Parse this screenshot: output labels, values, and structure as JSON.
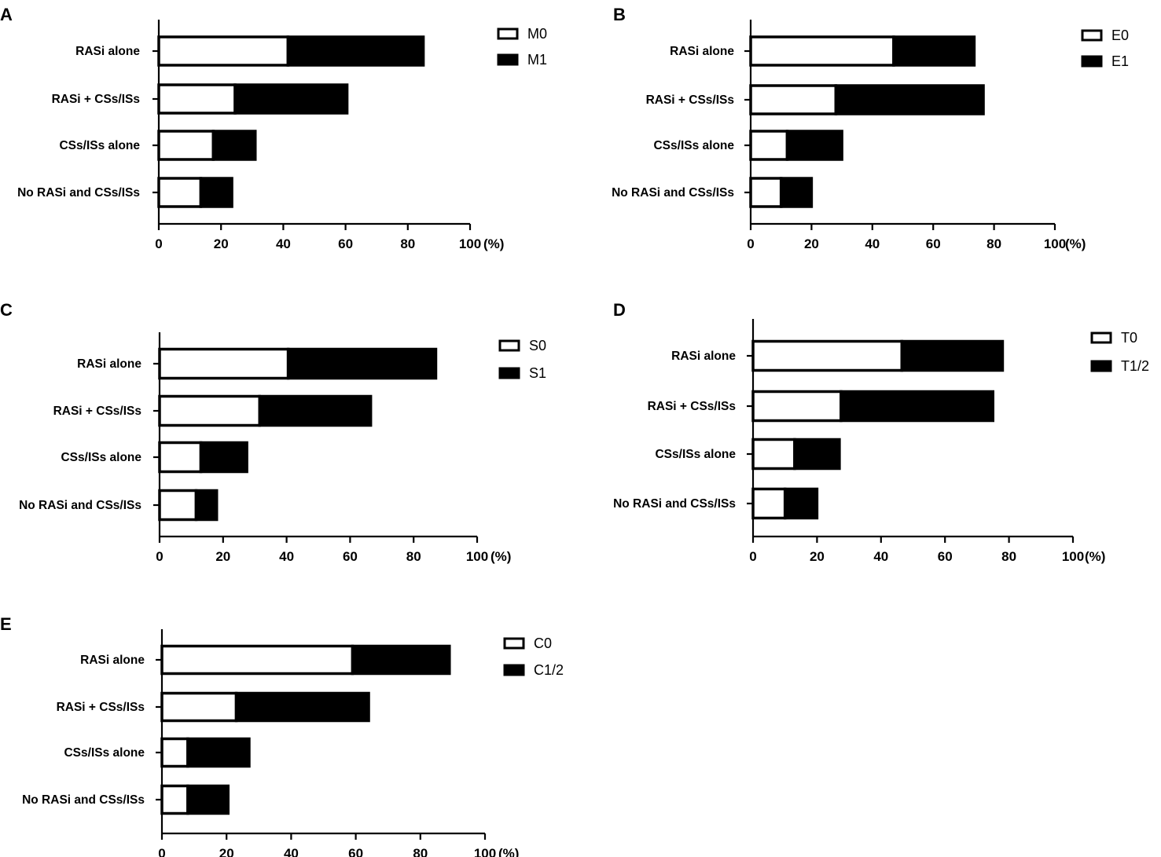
{
  "chart_data": [
    {
      "type": "bar",
      "stacked": true,
      "orientation": "horizontal",
      "panel": "A",
      "categories": [
        "RASi alone",
        "RASi + CSs/ISs",
        "CSs/ISs alone",
        "No RASi and CSs/ISs"
      ],
      "series": [
        {
          "name": "M0",
          "values": [
            41.5,
            24.5,
            17.5,
            13.5
          ],
          "color": "#ffffff"
        },
        {
          "name": "M1",
          "values": [
            43.5,
            36,
            13.5,
            10
          ],
          "color": "#000000"
        }
      ],
      "xlim": [
        0,
        100
      ],
      "xticks": [
        "0",
        "20",
        "40",
        "60",
        "80",
        "100"
      ],
      "xunit": "(%)",
      "legend": "top-right"
    },
    {
      "type": "bar",
      "stacked": true,
      "orientation": "horizontal",
      "panel": "B",
      "categories": [
        "RASi alone",
        "RASi + CSs/ISs",
        "CSs/ISs alone",
        "No RASi and CSs/ISs"
      ],
      "series": [
        {
          "name": "E0",
          "values": [
            47,
            28,
            12,
            10
          ],
          "color": "#ffffff"
        },
        {
          "name": "E1",
          "values": [
            26.5,
            48.5,
            18,
            10
          ],
          "color": "#000000"
        }
      ],
      "xlim": [
        0,
        100
      ],
      "xticks": [
        "0",
        "20",
        "40",
        "60",
        "80",
        "100"
      ],
      "xunit": "(%)",
      "legend": "top-right"
    },
    {
      "type": "bar",
      "stacked": true,
      "orientation": "horizontal",
      "panel": "C",
      "categories": [
        "RASi alone",
        "RASi + CSs/ISs",
        "CSs/ISs alone",
        "No RASi and CSs/ISs"
      ],
      "series": [
        {
          "name": "S0",
          "values": [
            40.5,
            31.5,
            13,
            11.5
          ],
          "color": "#ffffff"
        },
        {
          "name": "S1",
          "values": [
            46.5,
            35,
            14.5,
            6.5
          ],
          "color": "#000000"
        }
      ],
      "xlim": [
        0,
        100
      ],
      "xticks": [
        "0",
        "20",
        "40",
        "60",
        "80",
        "100"
      ],
      "xunit": "(%)",
      "legend": "top-right"
    },
    {
      "type": "bar",
      "stacked": true,
      "orientation": "horizontal",
      "panel": "D",
      "categories": [
        "RASi alone",
        "RASi + CSs/ISs",
        "CSs/ISs alone",
        "No RASi and CSs/ISs"
      ],
      "series": [
        {
          "name": "T0",
          "values": [
            46.5,
            27.5,
            13,
            10
          ],
          "color": "#ffffff"
        },
        {
          "name": "T1/2",
          "values": [
            31.5,
            47.5,
            14,
            10
          ],
          "color": "#000000"
        }
      ],
      "xlim": [
        0,
        100
      ],
      "xticks": [
        "0",
        "20",
        "40",
        "60",
        "80",
        "100"
      ],
      "xunit": "(%)",
      "legend": "top-right"
    },
    {
      "type": "bar",
      "stacked": true,
      "orientation": "horizontal",
      "panel": "E",
      "categories": [
        "RASi alone",
        "RASi + CSs/ISs",
        "CSs/ISs alone",
        "No RASi and CSs/ISs"
      ],
      "series": [
        {
          "name": "C0",
          "values": [
            59,
            23,
            8,
            8
          ],
          "color": "#ffffff"
        },
        {
          "name": "C1/2",
          "values": [
            30,
            41,
            19,
            12.5
          ],
          "color": "#000000"
        }
      ],
      "xlim": [
        0,
        100
      ],
      "xticks": [
        "0",
        "20",
        "40",
        "60",
        "80",
        "100"
      ],
      "xunit": "(%)",
      "legend": "top-right"
    }
  ]
}
